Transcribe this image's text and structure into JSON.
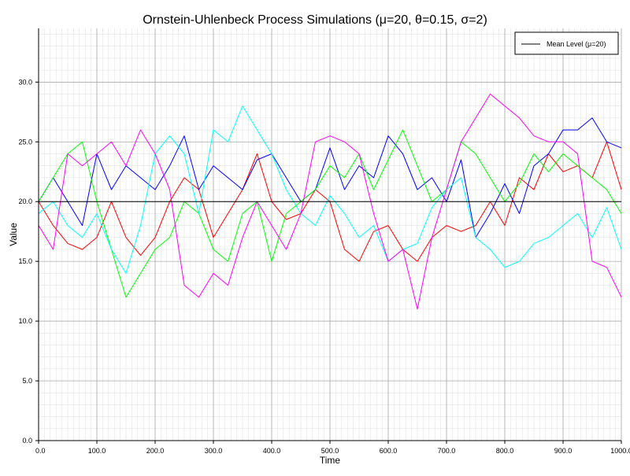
{
  "chart_data": {
    "type": "line",
    "title": "Ornstein-Uhlenbeck Process Simulations (μ=20, θ=0.15, σ=2)",
    "xlabel": "Time",
    "ylabel": "Value",
    "xlim": [
      0,
      1000
    ],
    "ylim": [
      0,
      34.5
    ],
    "x_ticks": [
      0,
      100,
      200,
      300,
      400,
      500,
      600,
      700,
      800,
      900,
      1000
    ],
    "x_tick_labels": [
      "0.0",
      "100.0",
      "200.0",
      "300.0",
      "400.0",
      "500.0",
      "600.0",
      "700.0",
      "800.0",
      "900.0",
      "1000.0"
    ],
    "y_ticks": [
      0,
      5,
      10,
      15,
      20,
      25,
      30
    ],
    "y_tick_labels": [
      "0.0",
      "5.0",
      "10.0",
      "15.0",
      "20.0",
      "25.0",
      "30.0"
    ],
    "grid": true,
    "minor_grid": true,
    "legend_position": "top-right",
    "reference_line": {
      "name": "Mean Level (μ=20)",
      "y": 20,
      "color": "#000000"
    },
    "series": [
      {
        "color": "#ff0000",
        "x": [
          0,
          25,
          50,
          75,
          100,
          125,
          150,
          175,
          200,
          225,
          250,
          275,
          300,
          325,
          350,
          375,
          400,
          425,
          450,
          475,
          500,
          525,
          550,
          575,
          600,
          625,
          650,
          675,
          700,
          725,
          750,
          775,
          800,
          825,
          850,
          875,
          900,
          925,
          950,
          975,
          1000
        ],
        "y": [
          20.0,
          18.0,
          16.5,
          16.0,
          17.0,
          20.0,
          17.0,
          15.5,
          17.0,
          20.0,
          22.0,
          21.0,
          17.0,
          19.0,
          21.0,
          24.0,
          20.0,
          18.5,
          19.0,
          21.0,
          20.0,
          16.0,
          15.0,
          17.5,
          18.0,
          16.0,
          15.0,
          17.0,
          18.0,
          17.5,
          18.0,
          20.0,
          18.0,
          22.0,
          21.0,
          24.0,
          22.5,
          23.0,
          22.0,
          25.0,
          21.0
        ]
      },
      {
        "color": "#0000ff",
        "x": [
          0,
          25,
          50,
          75,
          100,
          125,
          150,
          175,
          200,
          225,
          250,
          275,
          300,
          325,
          350,
          375,
          400,
          425,
          450,
          475,
          500,
          525,
          550,
          575,
          600,
          625,
          650,
          675,
          700,
          725,
          750,
          775,
          800,
          825,
          850,
          875,
          900,
          925,
          950,
          975,
          1000
        ],
        "y": [
          20.0,
          22.0,
          20.0,
          18.0,
          24.0,
          21.0,
          23.0,
          22.0,
          21.0,
          23.0,
          25.5,
          21.0,
          23.0,
          22.0,
          21.0,
          23.5,
          24.0,
          22.0,
          20.0,
          21.0,
          24.5,
          21.0,
          23.0,
          22.0,
          25.5,
          24.0,
          21.0,
          22.0,
          20.0,
          23.5,
          17.0,
          19.0,
          21.5,
          19.0,
          23.0,
          24.0,
          26.0,
          26.0,
          27.0,
          25.0,
          24.5
        ]
      },
      {
        "color": "#00ff00",
        "x": [
          0,
          25,
          50,
          75,
          100,
          125,
          150,
          175,
          200,
          225,
          250,
          275,
          300,
          325,
          350,
          375,
          400,
          425,
          450,
          475,
          500,
          525,
          550,
          575,
          600,
          625,
          650,
          675,
          700,
          725,
          750,
          775,
          800,
          825,
          850,
          875,
          900,
          925,
          950,
          975,
          1000
        ],
        "y": [
          20.0,
          22.0,
          24.0,
          25.0,
          20.0,
          16.0,
          12.0,
          14.0,
          16.0,
          17.0,
          20.0,
          19.0,
          16.0,
          15.0,
          19.0,
          20.0,
          15.0,
          19.0,
          20.0,
          21.0,
          23.0,
          22.0,
          24.0,
          21.0,
          23.5,
          26.0,
          23.0,
          20.0,
          21.0,
          25.0,
          24.0,
          22.0,
          20.0,
          21.5,
          24.0,
          22.5,
          24.0,
          23.0,
          22.0,
          21.0,
          19.0
        ]
      },
      {
        "color": "#00ffff",
        "x": [
          0,
          25,
          50,
          75,
          100,
          125,
          150,
          175,
          200,
          225,
          250,
          275,
          300,
          325,
          350,
          375,
          400,
          425,
          450,
          475,
          500,
          525,
          550,
          575,
          600,
          625,
          650,
          675,
          700,
          725,
          750,
          775,
          800,
          825,
          850,
          875,
          900,
          925,
          950,
          975,
          1000
        ],
        "y": [
          19.0,
          20.0,
          18.0,
          17.0,
          19.0,
          16.0,
          14.0,
          18.0,
          24.0,
          25.5,
          24.0,
          19.0,
          26.0,
          25.0,
          28.0,
          26.0,
          24.0,
          21.0,
          19.0,
          18.0,
          20.5,
          19.0,
          17.0,
          18.0,
          15.0,
          16.0,
          16.5,
          19.5,
          21.0,
          22.0,
          17.0,
          16.0,
          14.5,
          15.0,
          16.5,
          17.0,
          18.0,
          19.0,
          17.0,
          19.5,
          16.0
        ]
      },
      {
        "color": "#ff00ff",
        "x": [
          0,
          25,
          50,
          75,
          100,
          125,
          150,
          175,
          200,
          225,
          250,
          275,
          300,
          325,
          350,
          375,
          400,
          425,
          450,
          475,
          500,
          525,
          550,
          575,
          600,
          625,
          650,
          675,
          700,
          725,
          750,
          775,
          800,
          825,
          850,
          875,
          900,
          925,
          950,
          975,
          1000
        ],
        "y": [
          18.0,
          16.0,
          24.0,
          23.0,
          24.0,
          25.0,
          23.0,
          26.0,
          24.0,
          21.0,
          13.0,
          12.0,
          14.0,
          13.0,
          17.0,
          20.0,
          18.0,
          16.0,
          19.0,
          25.0,
          25.5,
          25.0,
          24.0,
          19.0,
          15.0,
          16.0,
          11.0,
          17.0,
          21.0,
          25.0,
          27.0,
          29.0,
          28.0,
          27.0,
          25.5,
          25.0,
          25.0,
          24.0,
          15.0,
          14.5,
          12.0
        ]
      }
    ]
  }
}
